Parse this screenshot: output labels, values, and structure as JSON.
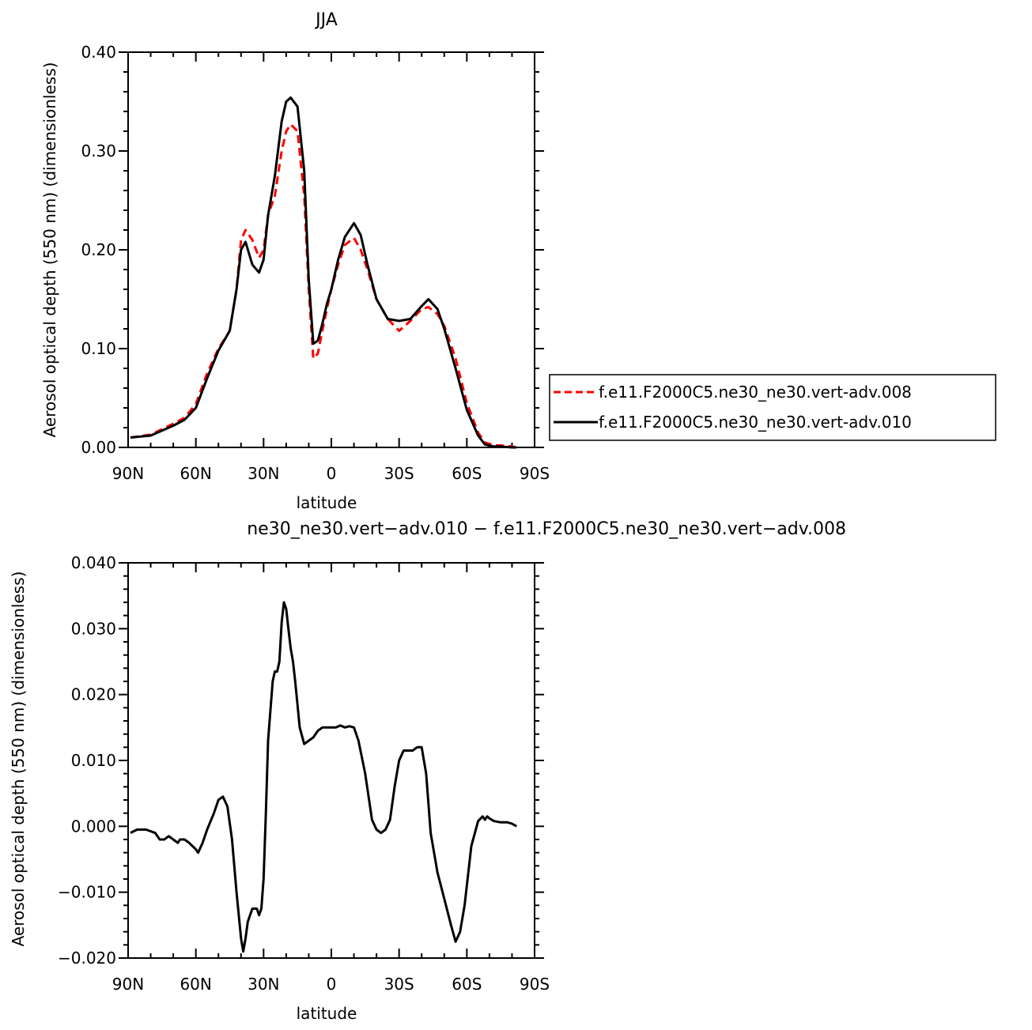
{
  "chart_data": [
    {
      "type": "line",
      "title": "JJA",
      "xlabel": "latitude",
      "ylabel": "Aerosol optical depth (550 nm) (dimensionless)",
      "xlim": [
        90,
        -90
      ],
      "ylim": [
        0.0,
        0.4
      ],
      "xticks": [
        90,
        60,
        30,
        0,
        -30,
        -60,
        -90
      ],
      "xtick_labels": [
        "90N",
        "60N",
        "30N",
        "0",
        "30S",
        "60S",
        "90S"
      ],
      "yticks": [
        0.0,
        0.1,
        0.2,
        0.3,
        0.4
      ],
      "ytick_labels": [
        "0.00",
        "0.10",
        "0.20",
        "0.30",
        "0.40"
      ],
      "legend_position": "outside-right",
      "series": [
        {
          "name": "f.e11.F2000C5.ne30_ne30.vert-adv.008",
          "color": "#ff0000",
          "style": "dashed",
          "x": [
            89,
            80,
            70,
            65,
            60,
            55,
            50,
            45,
            42,
            40,
            38,
            35,
            32,
            30,
            28,
            25,
            22,
            20,
            18,
            15,
            12,
            10,
            8,
            6,
            4,
            2,
            0,
            -3,
            -6,
            -10,
            -13,
            -16,
            -20,
            -25,
            -30,
            -35,
            -40,
            -43,
            -47,
            -50,
            -55,
            -60,
            -65,
            -68,
            -72,
            -75,
            -80,
            -82
          ],
          "y": [
            0.01,
            0.013,
            0.024,
            0.03,
            0.044,
            0.075,
            0.1,
            0.118,
            0.16,
            0.21,
            0.22,
            0.21,
            0.192,
            0.2,
            0.235,
            0.255,
            0.3,
            0.32,
            0.327,
            0.32,
            0.255,
            0.16,
            0.09,
            0.095,
            0.118,
            0.14,
            0.16,
            0.185,
            0.205,
            0.212,
            0.2,
            0.18,
            0.15,
            0.13,
            0.118,
            0.128,
            0.14,
            0.142,
            0.135,
            0.123,
            0.09,
            0.045,
            0.015,
            0.005,
            0.002,
            0.002,
            0.001,
            0.0
          ]
        },
        {
          "name": "f.e11.F2000C5.ne30_ne30.vert-adv.010",
          "color": "#000000",
          "style": "solid",
          "x": [
            89,
            80,
            70,
            65,
            60,
            55,
            50,
            45,
            42,
            40,
            38,
            35,
            32,
            30,
            28,
            25,
            22,
            20,
            18,
            15,
            12,
            10,
            8,
            6,
            4,
            2,
            0,
            -3,
            -6,
            -10,
            -13,
            -16,
            -20,
            -25,
            -30,
            -35,
            -40,
            -43,
            -47,
            -50,
            -55,
            -60,
            -65,
            -68,
            -72,
            -75,
            -80,
            -82
          ],
          "y": [
            0.01,
            0.012,
            0.022,
            0.028,
            0.04,
            0.07,
            0.098,
            0.118,
            0.16,
            0.2,
            0.208,
            0.185,
            0.177,
            0.19,
            0.235,
            0.275,
            0.33,
            0.35,
            0.354,
            0.345,
            0.28,
            0.17,
            0.105,
            0.108,
            0.125,
            0.145,
            0.16,
            0.19,
            0.213,
            0.227,
            0.215,
            0.185,
            0.15,
            0.13,
            0.128,
            0.13,
            0.143,
            0.15,
            0.14,
            0.12,
            0.08,
            0.038,
            0.012,
            0.003,
            0.001,
            0.001,
            0.0,
            0.0
          ]
        }
      ]
    },
    {
      "type": "line",
      "title": "f.e11.F2000C5.ne30_ne30.vert-adv.010 − f.e11.F2000C5.ne30_ne30.vert-adv.008",
      "title_visible": "ne30_ne30.vert−adv.010 − f.e11.F2000C5.ne30_ne30.vert−adv.008",
      "xlabel": "latitude",
      "ylabel": "Aerosol optical depth (550 nm) (dimensionless)",
      "xlim": [
        90,
        -90
      ],
      "ylim": [
        -0.02,
        0.04
      ],
      "xticks": [
        90,
        60,
        30,
        0,
        -30,
        -60,
        -90
      ],
      "xtick_labels": [
        "90N",
        "60N",
        "30N",
        "0",
        "30S",
        "60S",
        "90S"
      ],
      "yticks": [
        -0.02,
        -0.01,
        0.0,
        0.01,
        0.02,
        0.03,
        0.04
      ],
      "ytick_labels": [
        "−0.020",
        "−0.010",
        "0.000",
        "0.010",
        "0.020",
        "0.030",
        "0.040"
      ],
      "series": [
        {
          "color": "#000000",
          "style": "solid",
          "x": [
            89,
            86,
            82,
            78,
            76,
            74,
            72,
            70,
            68,
            67,
            65,
            63,
            60,
            59,
            57,
            55,
            52,
            50,
            48,
            46,
            44,
            42,
            40,
            39,
            38,
            37,
            36,
            35,
            33,
            32,
            31,
            30,
            29,
            28,
            26,
            25,
            24,
            23,
            22,
            21,
            20,
            19,
            18,
            17,
            16,
            14,
            12,
            10,
            8,
            6,
            4,
            2,
            0,
            -2,
            -4,
            -6,
            -8,
            -10,
            -12,
            -15,
            -18,
            -20,
            -22,
            -24,
            -26,
            -28,
            -30,
            -32,
            -34,
            -36,
            -38,
            -40,
            -42,
            -44,
            -47,
            -50,
            -53,
            -55,
            -57,
            -59,
            -62,
            -65,
            -67,
            -68,
            -69,
            -70,
            -72,
            -75,
            -78,
            -80,
            -82
          ],
          "y": [
            -0.001,
            -0.0005,
            -0.0005,
            -0.001,
            -0.002,
            -0.002,
            -0.0015,
            -0.002,
            -0.0025,
            -0.002,
            -0.002,
            -0.0025,
            -0.0035,
            -0.004,
            -0.0025,
            -0.0005,
            0.002,
            0.004,
            0.0045,
            0.003,
            -0.002,
            -0.01,
            -0.017,
            -0.019,
            -0.017,
            -0.0145,
            -0.0135,
            -0.0125,
            -0.0125,
            -0.0135,
            -0.0125,
            -0.008,
            0.002,
            0.013,
            0.022,
            0.0235,
            0.0235,
            0.025,
            0.031,
            0.034,
            0.033,
            0.03,
            0.027,
            0.025,
            0.022,
            0.015,
            0.0125,
            0.013,
            0.0135,
            0.0145,
            0.015,
            0.015,
            0.015,
            0.015,
            0.0153,
            0.015,
            0.0152,
            0.015,
            0.013,
            0.008,
            0.001,
            -0.0005,
            -0.001,
            -0.0005,
            0.001,
            0.006,
            0.01,
            0.0115,
            0.0115,
            0.0115,
            0.012,
            0.012,
            0.008,
            -0.001,
            -0.007,
            -0.011,
            -0.015,
            -0.0175,
            -0.016,
            -0.012,
            -0.003,
            0.0008,
            0.0015,
            0.001,
            0.0015,
            0.0012,
            0.0008,
            0.0006,
            0.0006,
            0.0004,
            0.0
          ]
        }
      ]
    }
  ]
}
